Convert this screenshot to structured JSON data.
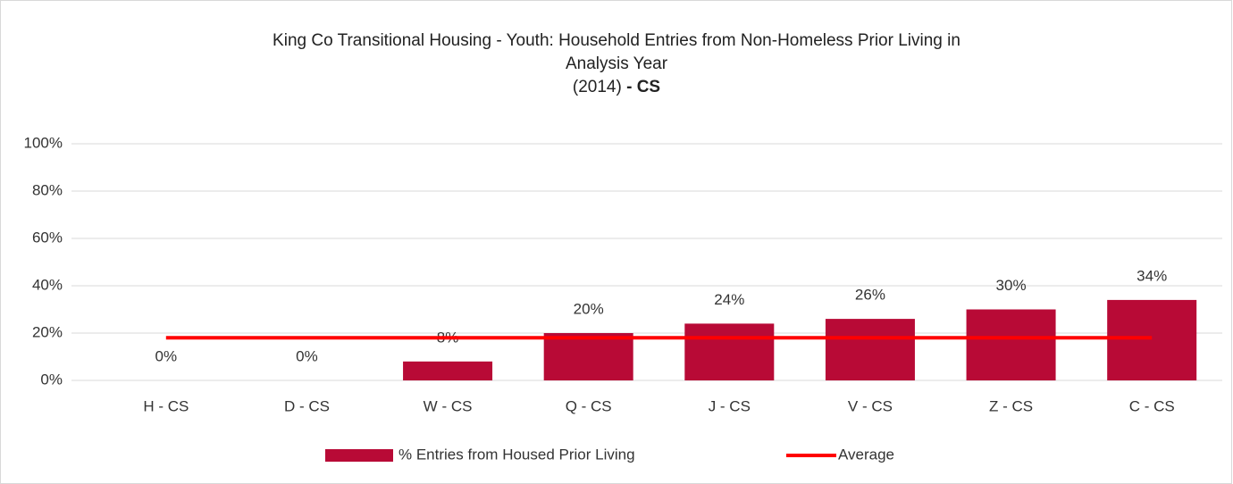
{
  "chart_data": {
    "type": "bar",
    "title": [
      "King Co Transitional Housing - Youth: Household Entries from Non-Homeless Prior Living in",
      "Analysis Year",
      "(2014)"
    ],
    "title_bold": "- CS",
    "categories": [
      "H - CS",
      "D - CS",
      "W - CS",
      "Q - CS",
      "J - CS",
      "V - CS",
      "Z - CS",
      "C - CS"
    ],
    "series": [
      {
        "name": "% Entries from Housed Prior Living",
        "color": "#b80a36",
        "values": [
          0,
          0,
          8,
          20,
          24,
          26,
          30,
          34
        ],
        "value_labels": [
          "0%",
          "0%",
          "8%",
          "20%",
          "24%",
          "26%",
          "30%",
          "34%"
        ]
      },
      {
        "name": "Average",
        "type": "line",
        "color": "#ff0000",
        "values": [
          18,
          18,
          18,
          18,
          18,
          18,
          18,
          18
        ]
      }
    ],
    "ylim": [
      0,
      100
    ],
    "yticks": [
      {
        "value": 0,
        "label": "0%"
      },
      {
        "value": 20,
        "label": "20%"
      },
      {
        "value": 40,
        "label": "40%"
      },
      {
        "value": 60,
        "label": "60%"
      },
      {
        "value": 80,
        "label": "80%"
      },
      {
        "value": 100,
        "label": "100%"
      }
    ],
    "grid": true,
    "legend": "bottom"
  }
}
